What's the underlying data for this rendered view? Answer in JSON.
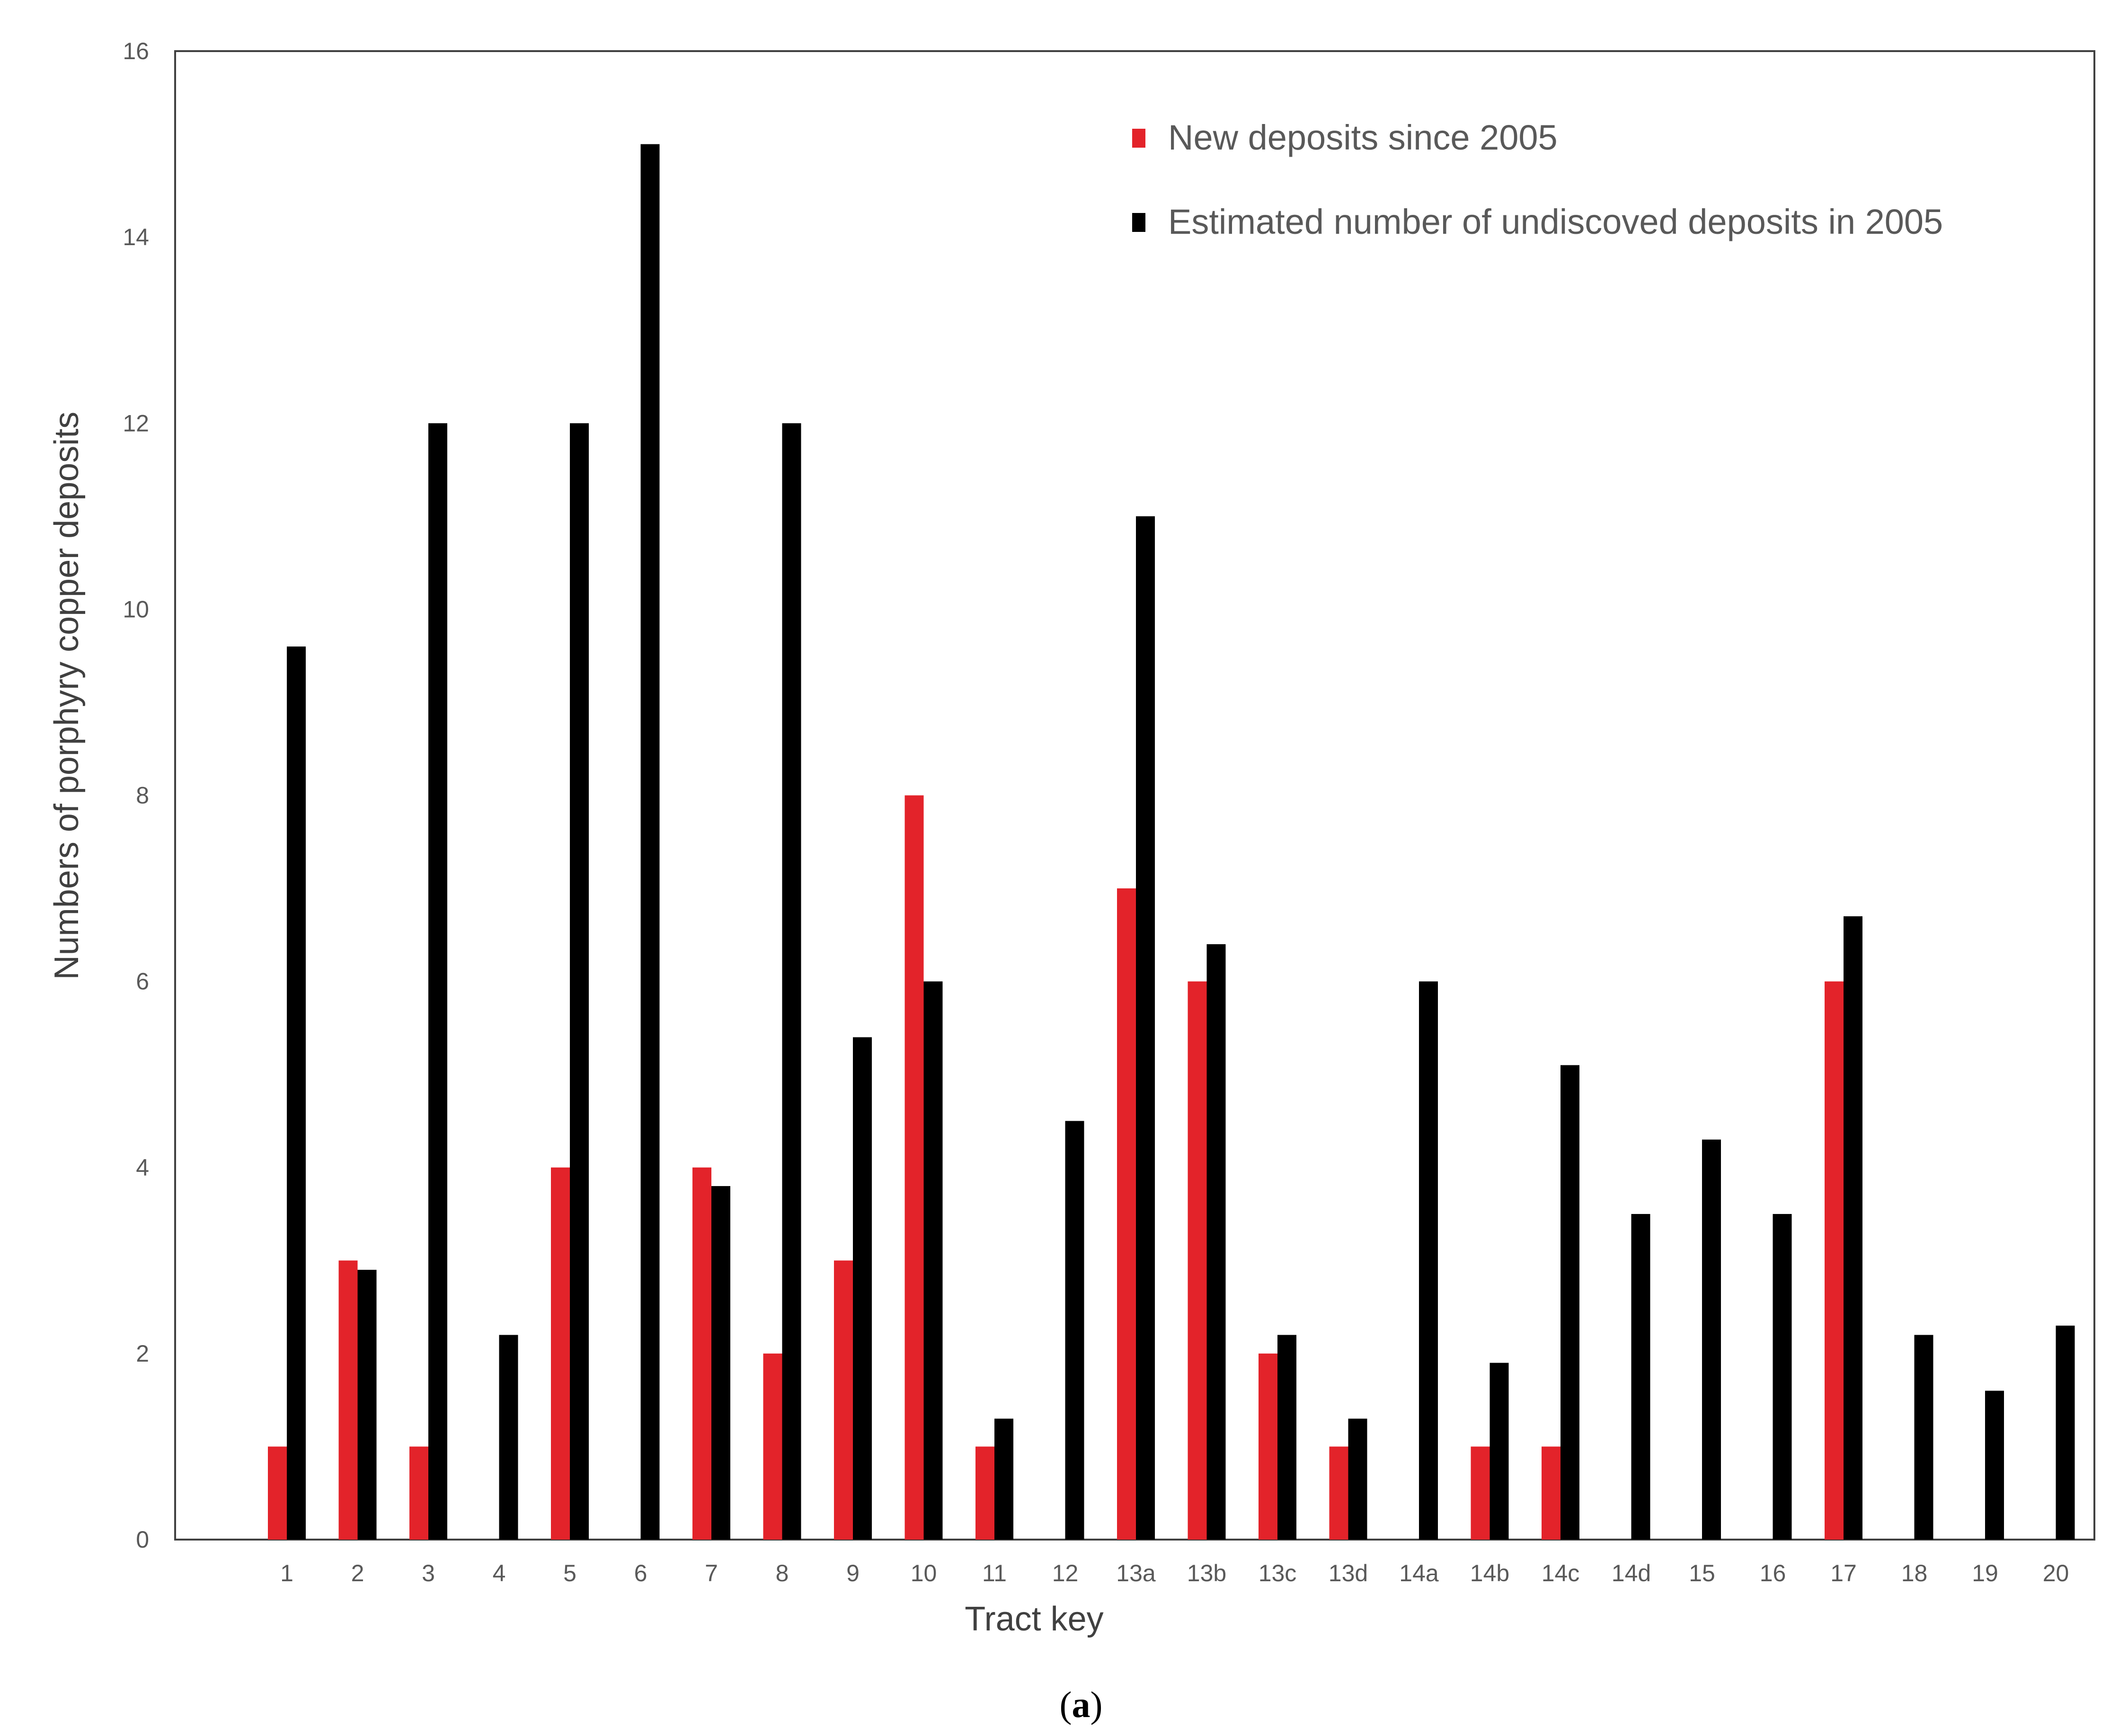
{
  "chart_data": {
    "type": "bar",
    "xlabel": "Tract key",
    "ylabel": "Numbers of porphyry copper deposits",
    "panel_label": {
      "open": "(",
      "letter": "a",
      "close": ")"
    },
    "ylim": [
      0,
      16
    ],
    "yticks": [
      0,
      2,
      4,
      6,
      8,
      10,
      12,
      14,
      16
    ],
    "grid": false,
    "legend_position": "top-right",
    "categories": [
      "1",
      "2",
      "3",
      "4",
      "5",
      "6",
      "7",
      "8",
      "9",
      "10",
      "11",
      "12",
      "13a",
      "13b",
      "13c",
      "13d",
      "14a",
      "14b",
      "14c",
      "14d",
      "15",
      "16",
      "17",
      "18",
      "19",
      "20"
    ],
    "series": [
      {
        "name": "New deposits since 2005",
        "color": "#e3232a",
        "values": [
          1,
          3,
          1,
          null,
          4,
          null,
          4,
          2,
          3,
          8,
          1,
          null,
          7,
          6,
          2,
          1,
          null,
          1,
          1,
          null,
          null,
          null,
          6,
          null,
          null,
          null
        ]
      },
      {
        "name": "Estimated number of undiscoved deposits in 2005",
        "color": "#000000",
        "values": [
          9.6,
          2.9,
          12,
          2.2,
          12,
          15,
          3.8,
          12,
          5.4,
          6,
          1.3,
          4.5,
          11,
          6.4,
          2.2,
          1.3,
          6,
          1.9,
          5.1,
          3.5,
          4.3,
          3.5,
          6.7,
          2.2,
          1.6,
          2.3
        ]
      }
    ]
  }
}
